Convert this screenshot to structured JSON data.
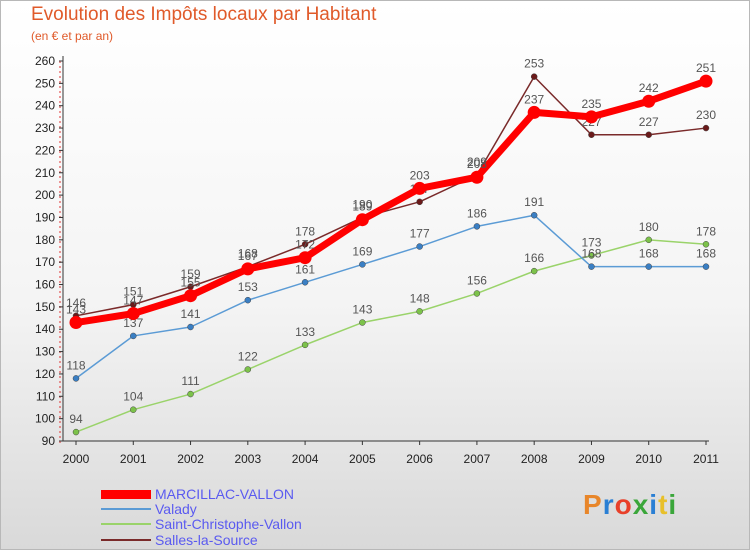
{
  "header": {
    "title": "Evolution des Impôts locaux par Habitant",
    "subtitle": "(en € et par an)"
  },
  "logo": {
    "text": "Proxiti",
    "colors": [
      "#e8862a",
      "#2a7fd4",
      "#e8402a",
      "#3aa63a",
      "#2a7fd4",
      "#e8c02a",
      "#3aa63a"
    ]
  },
  "chart_data": {
    "type": "line",
    "title": "Evolution des Impôts locaux par Habitant",
    "subtitle": "(en € et par an)",
    "xlabel": "",
    "ylabel": "",
    "categories": [
      "2000",
      "2001",
      "2002",
      "2003",
      "2004",
      "2005",
      "2006",
      "2007",
      "2008",
      "2009",
      "2010",
      "2011"
    ],
    "ylim": [
      90,
      260
    ],
    "yticks": [
      90,
      100,
      110,
      120,
      130,
      140,
      150,
      160,
      170,
      180,
      190,
      200,
      210,
      220,
      230,
      240,
      250,
      260
    ],
    "grid": false,
    "legend_position": "bottom-left",
    "series": [
      {
        "name": "Salles-la-Source",
        "color": "#7a2a2a",
        "point_color": "#6a1a1a",
        "thick": false,
        "values": [
          146,
          151,
          159,
          168,
          178,
          190,
          197,
          209,
          253,
          227,
          227,
          230
        ],
        "labels": [
          "146",
          "151",
          "159",
          "168",
          "178",
          "190",
          "197",
          "209",
          "253",
          "227",
          "227",
          "230"
        ]
      },
      {
        "name": "Saint-Christophe-Vallon",
        "color": "#9ad36a",
        "point_color": "#7cc24a",
        "thick": false,
        "values": [
          94,
          104,
          111,
          122,
          133,
          143,
          148,
          156,
          166,
          173,
          180,
          178
        ],
        "labels": [
          "94",
          "104",
          "111",
          "122",
          "133",
          "143",
          "148",
          "156",
          "166",
          "173",
          "180",
          "178"
        ]
      },
      {
        "name": "Valady",
        "color": "#5b9bd5",
        "point_color": "#3a7fc4",
        "thick": false,
        "values": [
          118,
          137,
          141,
          153,
          161,
          169,
          177,
          186,
          191,
          168,
          168,
          168
        ],
        "labels": [
          "118",
          "137",
          "141",
          "153",
          "161",
          "169",
          "177",
          "186",
          "191",
          "168",
          "168",
          "168"
        ]
      },
      {
        "name": "MARCILLAC-VALLON",
        "color": "#ff0000",
        "point_color": "#ff0000",
        "thick": true,
        "values": [
          143,
          147,
          155,
          167,
          172,
          189,
          203,
          208,
          237,
          235,
          242,
          251
        ],
        "labels": [
          "143",
          "147",
          "155",
          "167",
          "172",
          "189",
          "203",
          "208",
          "237",
          "235",
          "242",
          "251"
        ]
      }
    ]
  }
}
